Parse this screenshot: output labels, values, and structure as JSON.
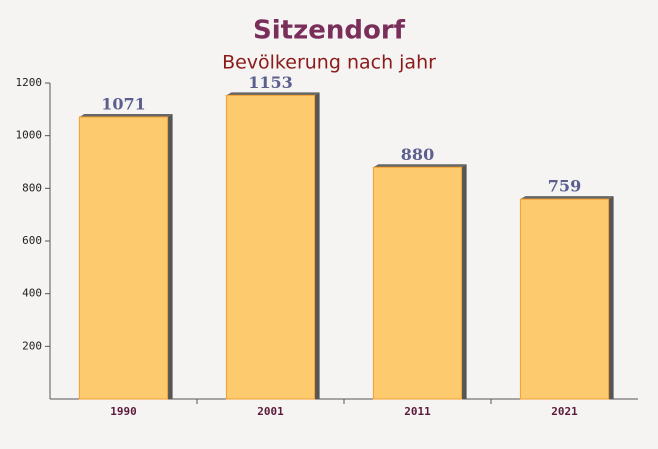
{
  "chart_data": {
    "type": "bar",
    "title": "Sitzendorf",
    "subtitle": "Bevölkerung nach jahr",
    "categories": [
      "1990",
      "2001",
      "2011",
      "2021"
    ],
    "values": [
      1071,
      1153,
      880,
      759
    ],
    "color": "#ffc55f",
    "ylim": [
      0,
      1200
    ],
    "yticks": [
      200,
      400,
      600,
      800,
      1000,
      1200
    ],
    "grid": false
  }
}
